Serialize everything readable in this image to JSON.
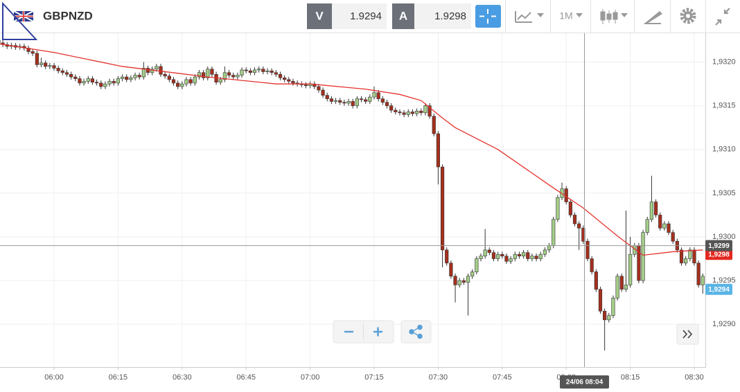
{
  "toolbar": {
    "symbol": "GBPNZD",
    "bid_label": "V",
    "bid": "1.9294",
    "ask_label": "A",
    "ask": "1.9298",
    "timeframe": "1M"
  },
  "chart_data": {
    "type": "candlestick",
    "candles": {
      "x": [
        "05:47",
        "05:48",
        "05:49",
        "05:50",
        "05:51",
        "05:52",
        "05:53",
        "05:54",
        "05:55",
        "05:56",
        "05:57",
        "05:58",
        "05:59",
        "06:00",
        "06:01",
        "06:02",
        "06:03",
        "06:04",
        "06:05",
        "06:06",
        "06:07",
        "06:08",
        "06:09",
        "06:10",
        "06:11",
        "06:12",
        "06:13",
        "06:14",
        "06:15",
        "06:16",
        "06:17",
        "06:18",
        "06:19",
        "06:20",
        "06:21",
        "06:22",
        "06:23",
        "06:24",
        "06:25",
        "06:26",
        "06:27",
        "06:28",
        "06:29",
        "06:30",
        "06:31",
        "06:32",
        "06:33",
        "06:34",
        "06:35",
        "06:36",
        "06:37",
        "06:38",
        "06:39",
        "06:40",
        "06:41",
        "06:42",
        "06:43",
        "06:44",
        "06:45",
        "06:46",
        "06:47",
        "06:48",
        "06:49",
        "06:50",
        "06:51",
        "06:52",
        "06:53",
        "06:54",
        "06:55",
        "06:56",
        "06:57",
        "06:58",
        "06:59",
        "07:00",
        "07:01",
        "07:02",
        "07:03",
        "07:04",
        "07:05",
        "07:06",
        "07:07",
        "07:08",
        "07:09",
        "07:10",
        "07:11",
        "07:12",
        "07:13",
        "07:14",
        "07:15",
        "07:16",
        "07:17",
        "07:18",
        "07:19",
        "07:20",
        "07:21",
        "07:22",
        "07:23",
        "07:24",
        "07:25",
        "07:26",
        "07:27",
        "07:28",
        "07:29",
        "07:30",
        "07:31",
        "07:32",
        "07:33",
        "07:34",
        "07:35",
        "07:36",
        "07:37",
        "07:38",
        "07:39",
        "07:40",
        "07:41",
        "07:42",
        "07:43",
        "07:44",
        "07:45",
        "07:46",
        "07:47",
        "07:48",
        "07:49",
        "07:50",
        "07:51",
        "07:52",
        "07:53",
        "07:54",
        "07:55",
        "07:56",
        "07:57",
        "07:58",
        "07:59",
        "08:00",
        "08:01",
        "08:02",
        "08:03",
        "08:04",
        "08:05",
        "08:06",
        "08:07",
        "08:08",
        "08:09",
        "08:10",
        "08:11",
        "08:12",
        "08:13",
        "08:14",
        "08:15",
        "08:16",
        "08:17",
        "08:18",
        "08:19",
        "08:20",
        "08:21",
        "08:22",
        "08:23",
        "08:24",
        "08:25",
        "08:26",
        "08:27",
        "08:28",
        "08:29",
        "08:30",
        "08:31",
        "08:32"
      ],
      "open": [
        1.93225,
        1.93222,
        1.9322,
        1.93218,
        1.93219,
        1.93217,
        1.93218,
        1.93216,
        1.93212,
        1.9321,
        1.93197,
        1.93199,
        1.93195,
        1.93196,
        1.93193,
        1.9319,
        1.93188,
        1.93186,
        1.93183,
        1.93181,
        1.93176,
        1.93178,
        1.93181,
        1.93177,
        1.93176,
        1.93172,
        1.93175,
        1.93178,
        1.93176,
        1.93181,
        1.93183,
        1.9318,
        1.93182,
        1.93185,
        1.93183,
        1.93193,
        1.93188,
        1.93192,
        1.93195,
        1.93186,
        1.93184,
        1.9318,
        1.93176,
        1.93172,
        1.93175,
        1.9318,
        1.93176,
        1.93183,
        1.93188,
        1.93182,
        1.93192,
        1.93186,
        1.93177,
        1.9318,
        1.93188,
        1.93185,
        1.93183,
        1.93185,
        1.93191,
        1.9319,
        1.93188,
        1.93191,
        1.93192,
        1.93189,
        1.9319,
        1.93188,
        1.93186,
        1.93182,
        1.9318,
        1.93178,
        1.93176,
        1.93175,
        1.93174,
        1.93173,
        1.93175,
        1.93172,
        1.93168,
        1.93162,
        1.93158,
        1.93155,
        1.93156,
        1.93154,
        1.93153,
        1.93155,
        1.9315,
        1.93158,
        1.93157,
        1.93155,
        1.9316,
        1.93165,
        1.93158,
        1.93154,
        1.9315,
        1.93145,
        1.93143,
        1.93142,
        1.9314,
        1.93143,
        1.93141,
        1.93144,
        1.93142,
        1.9315,
        1.93138,
        1.93118,
        1.9308,
        1.92985,
        1.9297,
        1.92955,
        1.92945,
        1.9295,
        1.92948,
        1.92955,
        1.9296,
        1.92975,
        1.92978,
        1.92985,
        1.92982,
        1.92975,
        1.9298,
        1.92978,
        1.92972,
        1.92975,
        1.9298,
        1.92978,
        1.92982,
        1.92975,
        1.92978,
        1.92975,
        1.9298,
        1.92985,
        1.9299,
        1.9302,
        1.93045,
        1.93055,
        1.9304,
        1.93025,
        1.93015,
        1.9301,
        1.92995,
        1.92975,
        1.9296,
        1.9294,
        1.92915,
        1.92905,
        1.9291,
        1.9293,
        1.92955,
        1.9294,
        1.92945,
        1.9298,
        1.9299,
        1.9295,
        1.93005,
        1.9302,
        1.9304,
        1.93025,
        1.9301,
        1.93015,
        1.93005,
        1.92995,
        1.92985,
        1.9297,
        1.92975,
        1.92985,
        1.9297,
        1.92945
      ],
      "high": [
        1.93228,
        1.93225,
        1.93223,
        1.93222,
        1.93222,
        1.93221,
        1.93221,
        1.93219,
        1.93215,
        1.93213,
        1.93205,
        1.93202,
        1.93199,
        1.93199,
        1.93196,
        1.93193,
        1.93191,
        1.93189,
        1.93186,
        1.93184,
        1.93181,
        1.93184,
        1.93184,
        1.9318,
        1.93179,
        1.93178,
        1.93181,
        1.93181,
        1.93184,
        1.93186,
        1.93186,
        1.93185,
        1.93188,
        1.93188,
        1.932,
        1.93196,
        1.93195,
        1.93198,
        1.93198,
        1.93189,
        1.93187,
        1.93183,
        1.93179,
        1.93178,
        1.93183,
        1.93183,
        1.93186,
        1.93191,
        1.93191,
        1.93195,
        1.93195,
        1.93189,
        1.93183,
        1.93195,
        1.93191,
        1.93188,
        1.93188,
        1.93194,
        1.93194,
        1.93193,
        1.93194,
        1.93195,
        1.93195,
        1.93193,
        1.93193,
        1.93191,
        1.93189,
        1.93185,
        1.93183,
        1.93181,
        1.93179,
        1.93178,
        1.93177,
        1.93178,
        1.93178,
        1.93175,
        1.93171,
        1.93165,
        1.93161,
        1.93159,
        1.93159,
        1.93157,
        1.93158,
        1.93158,
        1.93161,
        1.93161,
        1.9316,
        1.93163,
        1.93172,
        1.93168,
        1.93161,
        1.93157,
        1.93153,
        1.93148,
        1.93146,
        1.93145,
        1.93146,
        1.93146,
        1.93147,
        1.93147,
        1.93153,
        1.93153,
        1.93141,
        1.93121,
        1.93083,
        1.92988,
        1.92973,
        1.92958,
        1.92953,
        1.92953,
        1.92958,
        1.92963,
        1.92978,
        1.92981,
        1.93009,
        1.92988,
        1.92985,
        1.92983,
        1.92983,
        1.92981,
        1.92978,
        1.92983,
        1.92983,
        1.92985,
        1.92985,
        1.92981,
        1.92981,
        1.92983,
        1.92988,
        1.92993,
        1.93023,
        1.93048,
        1.93062,
        1.93058,
        1.93043,
        1.93028,
        1.93018,
        1.93013,
        1.92998,
        1.92978,
        1.92963,
        1.92943,
        1.92918,
        1.92913,
        1.92933,
        1.92958,
        1.92958,
        1.9303,
        1.93,
        1.92993,
        1.92993,
        1.93008,
        1.93023,
        1.9307,
        1.93043,
        1.93028,
        1.93018,
        1.93018,
        1.93008,
        1.92998,
        1.92988,
        1.92978,
        1.92988,
        1.92988,
        1.92973,
        1.92958
      ],
      "low": [
        1.93219,
        1.93217,
        1.93215,
        1.93215,
        1.93214,
        1.93214,
        1.93213,
        1.93209,
        1.93207,
        1.93194,
        1.93194,
        1.93192,
        1.93192,
        1.9319,
        1.93187,
        1.93185,
        1.93183,
        1.9318,
        1.93178,
        1.93173,
        1.93173,
        1.93175,
        1.93174,
        1.93173,
        1.93169,
        1.93169,
        1.93172,
        1.93173,
        1.93173,
        1.93178,
        1.93177,
        1.93177,
        1.93179,
        1.9318,
        1.9318,
        1.93185,
        1.93185,
        1.93189,
        1.93183,
        1.93181,
        1.93177,
        1.93173,
        1.93169,
        1.93169,
        1.93172,
        1.93173,
        1.93173,
        1.9318,
        1.93179,
        1.93179,
        1.93183,
        1.93174,
        1.93174,
        1.93177,
        1.93182,
        1.9318,
        1.9318,
        1.93182,
        1.93187,
        1.93185,
        1.93185,
        1.93188,
        1.93186,
        1.93186,
        1.93185,
        1.93183,
        1.93179,
        1.93177,
        1.93175,
        1.93173,
        1.93172,
        1.93171,
        1.9317,
        1.9317,
        1.93169,
        1.93165,
        1.93159,
        1.93155,
        1.93152,
        1.93152,
        1.93151,
        1.9315,
        1.9315,
        1.93147,
        1.93147,
        1.93154,
        1.93152,
        1.93152,
        1.93157,
        1.93155,
        1.93151,
        1.93147,
        1.93142,
        1.9314,
        1.93139,
        1.93137,
        1.93137,
        1.93138,
        1.93138,
        1.93139,
        1.93139,
        1.93135,
        1.93115,
        1.9306,
        1.92965,
        1.92967,
        1.92952,
        1.92925,
        1.92942,
        1.92945,
        1.9291,
        1.92952,
        1.92957,
        1.92972,
        1.92975,
        1.92979,
        1.92972,
        1.92972,
        1.92975,
        1.92969,
        1.92969,
        1.92972,
        1.92975,
        1.92975,
        1.92972,
        1.92972,
        1.92972,
        1.92972,
        1.92977,
        1.92982,
        1.92987,
        1.93017,
        1.93042,
        1.93037,
        1.93022,
        1.93012,
        1.92985,
        1.92992,
        1.92972,
        1.92957,
        1.92937,
        1.92912,
        1.9287,
        1.92902,
        1.92907,
        1.92927,
        1.92937,
        1.92937,
        1.92942,
        1.92977,
        1.92947,
        1.92947,
        1.93002,
        1.93017,
        1.93022,
        1.93007,
        1.93007,
        1.93002,
        1.92992,
        1.92982,
        1.92967,
        1.92967,
        1.92972,
        1.92967,
        1.92942,
        1.92935
      ],
      "close": [
        1.93222,
        1.9322,
        1.93218,
        1.93219,
        1.93217,
        1.93218,
        1.93216,
        1.93212,
        1.9321,
        1.93197,
        1.93199,
        1.93195,
        1.93196,
        1.93193,
        1.9319,
        1.93188,
        1.93186,
        1.93183,
        1.93181,
        1.93176,
        1.93178,
        1.93181,
        1.93177,
        1.93176,
        1.93172,
        1.93175,
        1.93178,
        1.93176,
        1.93181,
        1.93183,
        1.9318,
        1.93182,
        1.93185,
        1.93183,
        1.93193,
        1.93188,
        1.93192,
        1.93195,
        1.93186,
        1.93184,
        1.9318,
        1.93176,
        1.93172,
        1.93175,
        1.9318,
        1.93176,
        1.93183,
        1.93188,
        1.93182,
        1.93192,
        1.93186,
        1.93177,
        1.9318,
        1.93188,
        1.93185,
        1.93183,
        1.93185,
        1.93191,
        1.9319,
        1.93188,
        1.93191,
        1.93192,
        1.93189,
        1.9319,
        1.93188,
        1.93186,
        1.93182,
        1.9318,
        1.93178,
        1.93176,
        1.93175,
        1.93174,
        1.93173,
        1.93175,
        1.93172,
        1.93168,
        1.93162,
        1.93158,
        1.93155,
        1.93156,
        1.93154,
        1.93153,
        1.93155,
        1.9315,
        1.93158,
        1.93157,
        1.93155,
        1.9316,
        1.93165,
        1.93158,
        1.93154,
        1.9315,
        1.93145,
        1.93143,
        1.93142,
        1.9314,
        1.93143,
        1.93141,
        1.93144,
        1.93142,
        1.9315,
        1.93138,
        1.93118,
        1.9308,
        1.92985,
        1.9297,
        1.92955,
        1.92945,
        1.9295,
        1.92948,
        1.92955,
        1.9296,
        1.92975,
        1.92978,
        1.92985,
        1.92982,
        1.92975,
        1.9298,
        1.92978,
        1.92972,
        1.92975,
        1.9298,
        1.92978,
        1.92982,
        1.92975,
        1.92978,
        1.92975,
        1.9298,
        1.92985,
        1.9299,
        1.9302,
        1.93045,
        1.93055,
        1.9304,
        1.93025,
        1.93015,
        1.9301,
        1.92995,
        1.92975,
        1.9296,
        1.9294,
        1.92915,
        1.92905,
        1.9291,
        1.9293,
        1.92955,
        1.9294,
        1.92945,
        1.9298,
        1.9299,
        1.9295,
        1.93005,
        1.9302,
        1.9304,
        1.93025,
        1.9301,
        1.93015,
        1.93005,
        1.92995,
        1.92985,
        1.9297,
        1.92975,
        1.92985,
        1.9297,
        1.92945,
        1.92955
      ],
      "up_color": "#a3cd88",
      "down_color": "#a3301e"
    },
    "moving_average": {
      "color": "#e3312b",
      "x": [
        "05:47",
        "06:00",
        "06:16",
        "06:36",
        "06:52",
        "07:00",
        "07:13",
        "07:21",
        "07:26",
        "07:31",
        "07:34",
        "07:44",
        "07:57",
        "08:04",
        "08:12",
        "08:18",
        "08:25",
        "08:32"
      ],
      "values": [
        1.93221,
        1.93211,
        1.93195,
        1.93183,
        1.93175,
        1.93175,
        1.93169,
        1.93163,
        1.93156,
        1.93136,
        1.93125,
        1.931,
        1.93056,
        1.93033,
        1.93001,
        1.92979,
        1.92983,
        1.92985
      ]
    },
    "ylim": [
      1.92851,
      1.93233
    ],
    "yticks": [
      {
        "value": 1.929,
        "label": "1,9290"
      },
      {
        "value": 1.9295,
        "label": "1,9295"
      },
      {
        "value": 1.93,
        "label": "1,9300"
      },
      {
        "value": 1.9305,
        "label": "1,9305"
      },
      {
        "value": 1.931,
        "label": "1,9310"
      },
      {
        "value": 1.9315,
        "label": "1,9315"
      },
      {
        "value": 1.932,
        "label": "1,9320"
      }
    ],
    "xticks": [
      "06:00",
      "06:15",
      "06:30",
      "06:45",
      "07:00",
      "07:15",
      "07:30",
      "07:45",
      "08:00",
      "08:15",
      "08:30"
    ],
    "grid": true,
    "price_tags": [
      {
        "value": 1.9298,
        "label": "1,9298",
        "color": "#e3281f"
      },
      {
        "value": 1.9299,
        "label": "1,9299",
        "color": "#555555"
      },
      {
        "value": 1.9294,
        "label": "1,9294",
        "color": "#5ab4e5"
      }
    ],
    "crosshair": {
      "price": 1.9299,
      "time_label": "24/06 08:04"
    }
  }
}
